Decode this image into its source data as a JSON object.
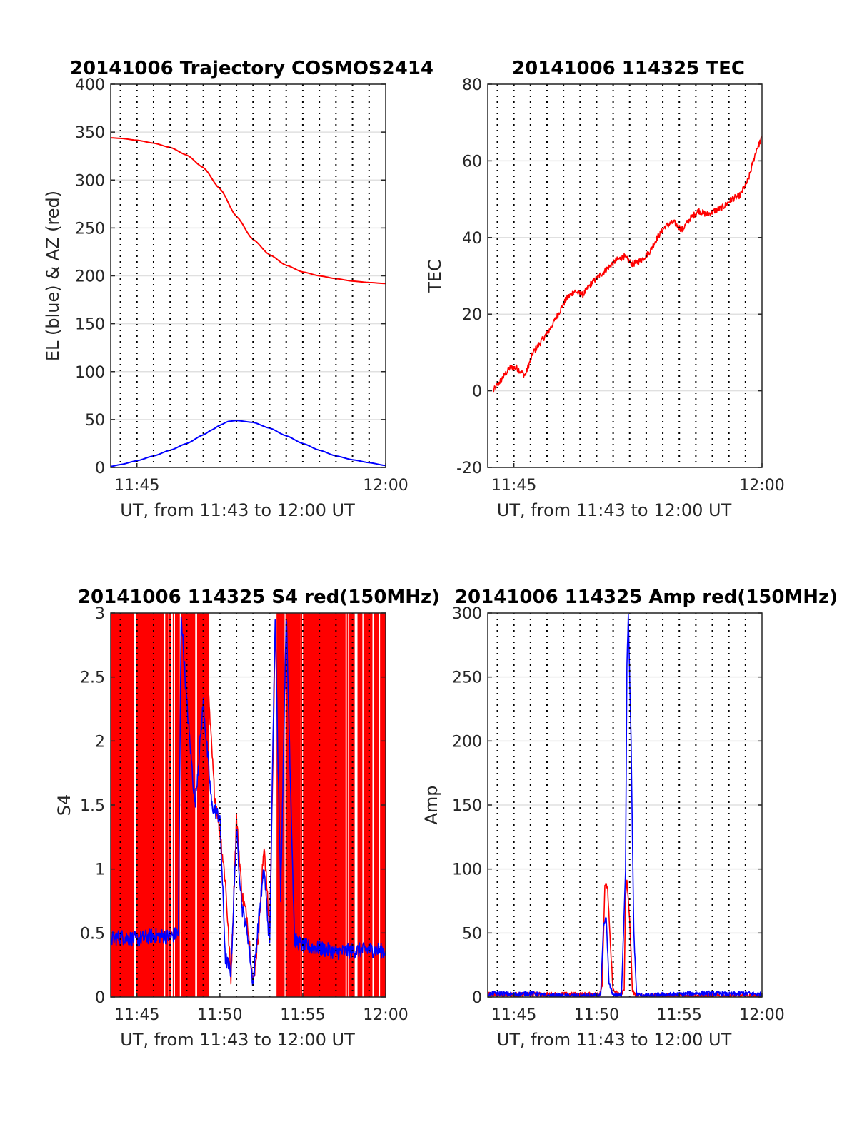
{
  "chart_data": [
    {
      "type": "line",
      "title": "20141006 Trajectory COSMOS2414",
      "xlabel": "UT, from 11:43 to 12:00 UT",
      "ylabel": "EL (blue) & AZ (red)",
      "xlim": [
        "11:43:25",
        "12:00:00"
      ],
      "ylim": [
        0,
        400
      ],
      "y_ticks": [
        0,
        50,
        100,
        150,
        200,
        250,
        300,
        350,
        400
      ],
      "x_tick_labels": [
        {
          "t": "11:45",
          "label": "11:45"
        },
        {
          "t": "12:00",
          "label": "12:00"
        }
      ],
      "vertical_dotted_grid_minutes": [
        44,
        45,
        46,
        47,
        48,
        49,
        50,
        51,
        52,
        53,
        54,
        55,
        56,
        57,
        58,
        59
      ],
      "grid": true,
      "series": [
        {
          "name": "AZ",
          "color": "#ff0000",
          "x": [
            "11:43:25",
            "11:44:00",
            "11:45:00",
            "11:46:00",
            "11:47:00",
            "11:48:00",
            "11:49:00",
            "11:50:00",
            "11:51:00",
            "11:52:00",
            "11:53:00",
            "11:54:00",
            "11:55:00",
            "11:56:00",
            "11:57:00",
            "11:58:00",
            "11:59:00",
            "12:00:00"
          ],
          "values": [
            344,
            343.5,
            341.5,
            338.5,
            334,
            326,
            313,
            291,
            262,
            238,
            222,
            211,
            204,
            200,
            197,
            194.5,
            193,
            192
          ]
        },
        {
          "name": "EL",
          "color": "#0000ff",
          "x": [
            "11:43:25",
            "11:44:00",
            "11:45:00",
            "11:46:00",
            "11:47:00",
            "11:48:00",
            "11:49:00",
            "11:49:30",
            "11:50:00",
            "11:50:30",
            "11:51:00",
            "11:52:00",
            "11:53:00",
            "11:54:00",
            "11:55:00",
            "11:56:00",
            "11:57:00",
            "11:58:00",
            "11:59:00",
            "12:00:00"
          ],
          "values": [
            1,
            3,
            7,
            12,
            18,
            25,
            34,
            39,
            44,
            48,
            49,
            47,
            41,
            33,
            25,
            18,
            12,
            8,
            5,
            2
          ]
        }
      ]
    },
    {
      "type": "line",
      "title": "20141006 114325 TEC",
      "xlabel": "UT, from 11:43 to 12:00 UT",
      "ylabel": "TEC",
      "xlim": [
        "11:43:25",
        "12:00:00"
      ],
      "ylim": [
        -20,
        80
      ],
      "y_ticks": [
        -20,
        0,
        20,
        40,
        60,
        80
      ],
      "x_tick_labels": [
        {
          "t": "11:45",
          "label": "11:45"
        },
        {
          "t": "12:00",
          "label": "12:00"
        }
      ],
      "vertical_dotted_grid_minutes": [
        44,
        45,
        46,
        47,
        48,
        49,
        50,
        51,
        52,
        53,
        54,
        55,
        56,
        57,
        58,
        59
      ],
      "grid": true,
      "series": [
        {
          "name": "TEC",
          "color": "#ff0000",
          "x": [
            "11:43:45",
            "11:44:15",
            "11:44:45",
            "11:45:10",
            "11:45:40",
            "11:46:10",
            "11:46:40",
            "11:47:10",
            "11:47:40",
            "11:48:10",
            "11:48:40",
            "11:49:10",
            "11:49:40",
            "11:50:10",
            "11:50:40",
            "11:51:10",
            "11:51:40",
            "11:52:10",
            "11:52:40",
            "11:53:10",
            "11:53:40",
            "11:54:10",
            "11:54:40",
            "11:55:10",
            "11:55:40",
            "11:56:10",
            "11:56:40",
            "11:57:10",
            "11:57:40",
            "11:58:10",
            "11:58:40",
            "11:59:10",
            "11:59:40",
            "12:00:00"
          ],
          "values": [
            0,
            3,
            6,
            6,
            4,
            10,
            13,
            16,
            20,
            24,
            26,
            25,
            28,
            30,
            32,
            34,
            35,
            33,
            34,
            36,
            40,
            43,
            44,
            42,
            45,
            47,
            46,
            47,
            48,
            50,
            51,
            55,
            63,
            66
          ]
        }
      ]
    },
    {
      "type": "line",
      "title": "20141006 114325 S4 red(150MHz)",
      "xlabel": "UT, from 11:43 to 12:00 UT",
      "ylabel": "S4",
      "xlim": [
        "11:43:25",
        "12:00:00"
      ],
      "ylim": [
        0,
        3
      ],
      "y_ticks": [
        0,
        0.5,
        1,
        1.5,
        2,
        2.5,
        3
      ],
      "y_tick_labels": [
        "0",
        "0.5",
        "1",
        "1.5",
        "2",
        "2.5",
        "3"
      ],
      "x_tick_labels": [
        {
          "t": "11:45",
          "label": "11:45"
        },
        {
          "t": "11:50",
          "label": "11:50"
        },
        {
          "t": "11:55",
          "label": "11:55"
        },
        {
          "t": "12:00",
          "label": "12:00"
        }
      ],
      "vertical_dotted_grid_minutes": [
        44,
        45,
        46,
        47,
        48,
        49,
        50,
        51,
        52,
        53,
        54,
        55,
        56,
        57,
        58,
        59
      ],
      "grid": true,
      "series": [
        {
          "name": "S4 red",
          "color": "#ff0000",
          "saturated_fill_segments": [
            [
              "11:43:25",
              "11:47:35"
            ],
            [
              "11:47:40",
              "11:49:20"
            ],
            [
              "11:53:25",
              "12:00:00"
            ]
          ],
          "x": [
            "11:49:20",
            "11:49:40",
            "11:50:00",
            "11:50:20",
            "11:50:40",
            "11:51:00",
            "11:51:20",
            "11:51:40",
            "11:52:00",
            "11:52:20",
            "11:52:40",
            "11:53:00",
            "11:53:20"
          ],
          "values": [
            2.3,
            1.6,
            1.3,
            0.9,
            0.15,
            1.4,
            0.8,
            0.6,
            0.1,
            0.5,
            1.2,
            0.5,
            2.8
          ]
        },
        {
          "name": "S4 blue",
          "color": "#0000ff",
          "x": [
            "11:43:25",
            "11:44:00",
            "11:45:00",
            "11:46:00",
            "11:47:00",
            "11:47:30",
            "11:47:40",
            "11:48:00",
            "11:48:30",
            "11:49:00",
            "11:49:30",
            "11:50:00",
            "11:50:20",
            "11:50:40",
            "11:51:00",
            "11:51:20",
            "11:51:40",
            "11:52:00",
            "11:52:20",
            "11:52:40",
            "11:53:00",
            "11:53:20",
            "11:53:40",
            "11:54:00",
            "11:54:30",
            "11:55:00",
            "11:56:00",
            "11:57:00",
            "11:58:00",
            "11:59:00",
            "12:00:00"
          ],
          "values": [
            0.45,
            0.47,
            0.45,
            0.48,
            0.47,
            0.5,
            3.0,
            2.3,
            1.5,
            2.3,
            1.5,
            1.4,
            0.3,
            0.2,
            1.3,
            0.7,
            0.5,
            0.1,
            0.6,
            1.0,
            0.4,
            3.0,
            0.8,
            3.0,
            0.45,
            0.4,
            0.38,
            0.35,
            0.36,
            0.37,
            0.36
          ]
        }
      ]
    },
    {
      "type": "line",
      "title": "20141006 114325 Amp red(150MHz)",
      "xlabel": "UT, from 11:43 to 12:00 UT",
      "ylabel": "Amp",
      "xlim": [
        "11:43:25",
        "12:00:00"
      ],
      "ylim": [
        0,
        300
      ],
      "y_ticks": [
        0,
        50,
        100,
        150,
        200,
        250,
        300
      ],
      "x_tick_labels": [
        {
          "t": "11:45",
          "label": "11:45"
        },
        {
          "t": "11:50",
          "label": "11:50"
        },
        {
          "t": "11:55",
          "label": "11:55"
        },
        {
          "t": "12:00",
          "label": "12:00"
        }
      ],
      "vertical_dotted_grid_minutes": [
        44,
        45,
        46,
        47,
        48,
        49,
        50,
        51,
        52,
        53,
        54,
        55,
        56,
        57,
        58,
        59
      ],
      "grid": true,
      "series": [
        {
          "name": "Amp red",
          "color": "#ff0000",
          "x": [
            "11:43:25",
            "11:50:10",
            "11:50:20",
            "11:50:30",
            "11:50:40",
            "11:50:50",
            "11:51:00",
            "11:51:20",
            "11:51:40",
            "11:51:45",
            "11:51:50",
            "11:52:00",
            "11:52:10",
            "11:52:20",
            "12:00:00"
          ],
          "values": [
            2,
            2,
            10,
            88,
            85,
            40,
            5,
            2,
            5,
            80,
            90,
            60,
            5,
            1,
            1
          ]
        },
        {
          "name": "Amp blue",
          "color": "#0000ff",
          "x": [
            "11:43:25",
            "11:44:00",
            "11:45:00",
            "11:46:00",
            "11:47:00",
            "11:48:00",
            "11:49:00",
            "11:50:00",
            "11:50:15",
            "11:50:25",
            "11:50:35",
            "11:50:45",
            "11:51:00",
            "11:51:30",
            "11:51:45",
            "11:51:50",
            "11:51:55",
            "11:52:05",
            "11:52:15",
            "11:52:25",
            "11:53:00",
            "11:54:00",
            "11:55:00",
            "11:56:00",
            "11:57:00",
            "11:58:00",
            "11:59:00",
            "12:00:00"
          ],
          "values": [
            2,
            3,
            2,
            3,
            1,
            1,
            1,
            1,
            2,
            55,
            62,
            10,
            2,
            1,
            100,
            260,
            298,
            200,
            50,
            2,
            1,
            2,
            2,
            3,
            3,
            2,
            3,
            2
          ]
        }
      ]
    }
  ]
}
